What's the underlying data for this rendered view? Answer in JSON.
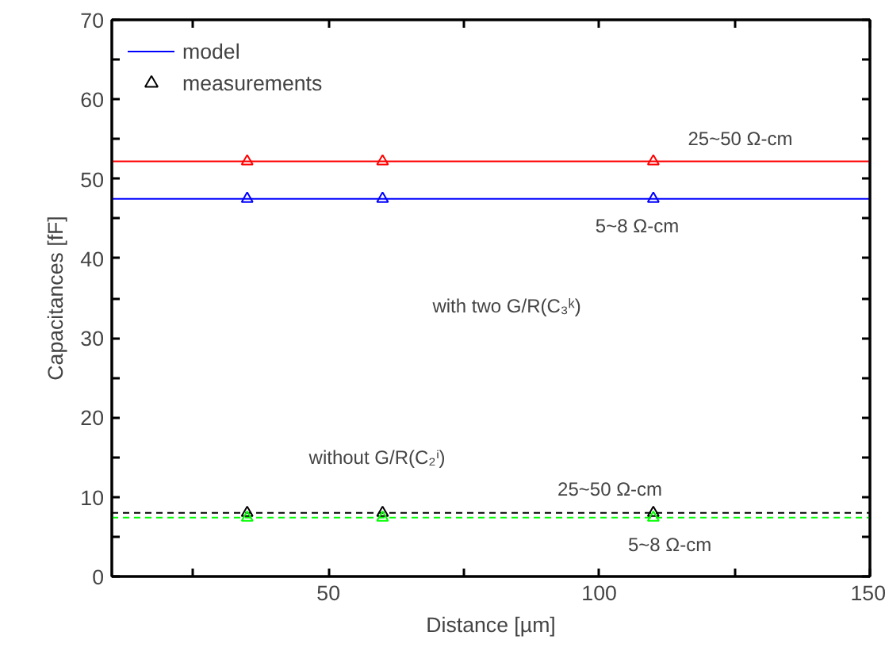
{
  "chart_data": {
    "type": "line",
    "xlabel": "Distance [µm]",
    "ylabel": "Capacitances [fF]",
    "xlim": [
      10,
      150
    ],
    "ylim": [
      0,
      70
    ],
    "xticks": [
      {
        "value": 25,
        "label": null
      },
      50,
      {
        "value": 75,
        "label": null
      },
      100,
      {
        "value": 125,
        "label": null
      },
      150
    ],
    "yticks": [
      0,
      {
        "value": 5,
        "label": null
      },
      10,
      {
        "value": 15,
        "label": null
      },
      20,
      {
        "value": 25,
        "label": null
      },
      30,
      {
        "value": 35,
        "label": null
      },
      40,
      {
        "value": 45,
        "label": null
      },
      50,
      {
        "value": 55,
        "label": null
      },
      60,
      {
        "value": 65,
        "label": null
      },
      70
    ],
    "grid": false,
    "legend": "top left",
    "series": [
      {
        "color": "#ff0000",
        "x": [
          10,
          150
        ],
        "values": [
          52.2,
          52.2
        ],
        "line_style": "solid",
        "marker": "none"
      },
      {
        "name": "model",
        "color": "#0000ff",
        "x": [
          10,
          150
        ],
        "values": [
          47.5,
          47.5
        ],
        "line_style": "solid",
        "marker": "none"
      },
      {
        "color": "#000000",
        "x": [
          10,
          150
        ],
        "values": [
          8.0,
          8.0
        ],
        "line_style": "dashed",
        "marker": "none"
      },
      {
        "color": "#00ff00",
        "x": [
          10,
          150
        ],
        "values": [
          7.4,
          7.4
        ],
        "line_style": "dashed",
        "marker": "none"
      },
      {
        "type": "scatter",
        "color": "#ff0000",
        "x": [
          35,
          60,
          110
        ],
        "values": [
          52.2,
          52.2,
          52.2
        ],
        "marker": "triangle"
      },
      {
        "type": "scatter",
        "color": "#0000ff",
        "x": [
          35,
          60,
          110
        ],
        "values": [
          47.5,
          47.5,
          47.5
        ],
        "marker": "triangle"
      },
      {
        "type": "scatter",
        "name": "measurements",
        "color": "#000000",
        "x": [
          35,
          60,
          110
        ],
        "values": [
          8.0,
          8.0,
          8.0
        ],
        "marker": "triangle"
      },
      {
        "type": "scatter",
        "color": "#00ff00",
        "x": [
          35,
          60,
          110
        ],
        "values": [
          7.4,
          7.4,
          7.4
        ],
        "marker": "triangle"
      }
    ],
    "annotations": [
      "25~50 Ω-cm",
      "5~8 Ω-cm",
      "with two G/R(C₃ᵏ)",
      "without G/R(C₂ⁱ)",
      "25~50 Ω-cm",
      "5~8 Ω-cm"
    ]
  }
}
